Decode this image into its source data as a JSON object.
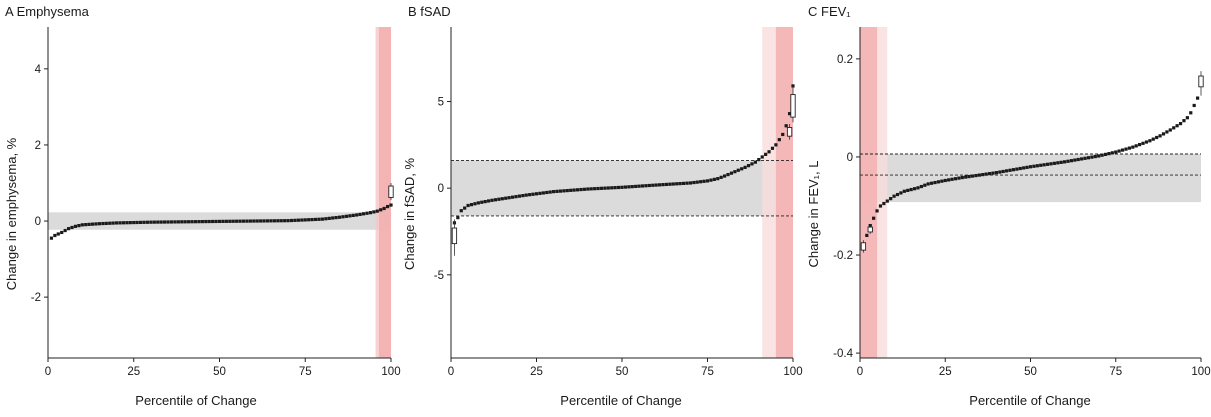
{
  "chart_data": [
    {
      "type": "scatter",
      "title": "A Emphysema",
      "xlabel": "Percentile of Change",
      "ylabel": "Change in emphysema, %",
      "xlim": [
        0,
        100
      ],
      "ylim": [
        -3.6,
        5.1
      ],
      "xticks": [
        0,
        25,
        50,
        75,
        100
      ],
      "yticks": [
        4,
        2,
        0,
        -2
      ],
      "ytick_labels": [
        "4",
        "2",
        "0",
        "-2"
      ],
      "reference_band": [
        -0.23,
        0.23
      ],
      "highlight_bands": [
        {
          "range": [
            95.5,
            100
          ],
          "color": "#f7c6c6"
        },
        {
          "range": [
            96.5,
            100
          ],
          "color": "#f4adad"
        }
      ],
      "curve": {
        "x": [
          1,
          2,
          4,
          6,
          8,
          10,
          15,
          20,
          30,
          40,
          50,
          60,
          70,
          75,
          80,
          85,
          90,
          94,
          96,
          98,
          99,
          100
        ],
        "y": [
          -0.45,
          -0.38,
          -0.3,
          -0.2,
          -0.14,
          -0.1,
          -0.07,
          -0.05,
          -0.03,
          -0.02,
          -0.01,
          0.0,
          0.01,
          0.03,
          0.05,
          0.1,
          0.16,
          0.22,
          0.26,
          0.33,
          0.38,
          0.42
        ]
      },
      "boxes": [
        {
          "x": 100,
          "q1": 0.62,
          "q3": 0.92,
          "whisker": [
            0.55,
            1.0
          ]
        }
      ],
      "colors": {
        "points": "#1a1a1a",
        "band": "#d9d9d9"
      }
    },
    {
      "type": "scatter",
      "title": "B fSAD",
      "xlabel": "Percentile of Change",
      "ylabel": "Change in fSAD, %",
      "xlim": [
        0,
        100
      ],
      "ylim": [
        -9.8,
        9.3
      ],
      "xticks": [
        0,
        25,
        50,
        75,
        100
      ],
      "yticks": [
        5,
        0,
        -5
      ],
      "ytick_labels": [
        "5",
        "0",
        "-5"
      ],
      "reference_band": [
        -1.6,
        1.6
      ],
      "dashed_lines": [
        -1.6,
        1.6
      ],
      "highlight_bands": [
        {
          "range": [
            91,
            100
          ],
          "color": "#f7dcdc"
        },
        {
          "range": [
            95,
            100
          ],
          "color": "#f4adad"
        }
      ],
      "curve": {
        "x": [
          1,
          2,
          3,
          5,
          8,
          12,
          17,
          22,
          30,
          40,
          50,
          60,
          70,
          75,
          78,
          80,
          83,
          86,
          89,
          91,
          93,
          95,
          96,
          97,
          98,
          99,
          100
        ],
        "y": [
          -2.0,
          -1.7,
          -1.3,
          -1.0,
          -0.85,
          -0.7,
          -0.55,
          -0.4,
          -0.2,
          -0.05,
          0.05,
          0.18,
          0.3,
          0.42,
          0.55,
          0.7,
          0.95,
          1.2,
          1.5,
          1.8,
          2.1,
          2.5,
          2.8,
          3.1,
          3.6,
          4.3,
          5.9
        ]
      },
      "boxes": [
        {
          "x": 1,
          "q1": -3.2,
          "q3": -2.3,
          "whisker": [
            -3.9,
            -1.8
          ]
        },
        {
          "x": 99,
          "q1": 3.0,
          "q3": 3.5,
          "whisker": [
            2.8,
            3.7
          ]
        },
        {
          "x": 100,
          "q1": 4.1,
          "q3": 5.4,
          "whisker": [
            3.8,
            5.9
          ]
        }
      ],
      "colors": {
        "points": "#1a1a1a",
        "band": "#d9d9d9"
      }
    },
    {
      "type": "scatter",
      "title": "C FEV₁",
      "xlabel": "Percentile of Change",
      "ylabel": "Change in FEV₁, L",
      "xlim": [
        0,
        100
      ],
      "ylim": [
        -0.41,
        0.265
      ],
      "xticks": [
        0,
        25,
        50,
        75,
        100
      ],
      "yticks": [
        0.2,
        0,
        -0.2,
        -0.4
      ],
      "ytick_labels": [
        "0.2",
        "0",
        "-0.2",
        "-0.4"
      ],
      "reference_band": [
        -0.092,
        0.006
      ],
      "dashed_lines": [
        0.006,
        -0.037
      ],
      "highlight_bands": [
        {
          "range": [
            0,
            8
          ],
          "color": "#f7dcdc"
        },
        {
          "range": [
            0,
            5
          ],
          "color": "#f4adad"
        }
      ],
      "curve": {
        "x": [
          1,
          2,
          3,
          4,
          5,
          6,
          8,
          10,
          13,
          17,
          20,
          25,
          30,
          40,
          50,
          60,
          70,
          75,
          80,
          85,
          88,
          91,
          94,
          96,
          97,
          98,
          99,
          100
        ],
        "y": [
          -0.18,
          -0.16,
          -0.14,
          -0.125,
          -0.11,
          -0.1,
          -0.09,
          -0.08,
          -0.07,
          -0.063,
          -0.055,
          -0.048,
          -0.042,
          -0.032,
          -0.02,
          -0.01,
          0.002,
          0.01,
          0.02,
          0.033,
          0.043,
          0.055,
          0.068,
          0.08,
          0.09,
          0.105,
          0.12,
          0.155
        ]
      },
      "boxes": [
        {
          "x": 1,
          "q1": -0.19,
          "q3": -0.175,
          "whisker": [
            -0.195,
            -0.17
          ]
        },
        {
          "x": 3,
          "q1": -0.153,
          "q3": -0.143,
          "whisker": [
            -0.157,
            -0.14
          ]
        },
        {
          "x": 100,
          "q1": 0.143,
          "q3": 0.165,
          "whisker": [
            0.125,
            0.175
          ]
        }
      ],
      "colors": {
        "points": "#1a1a1a",
        "band": "#d9d9d9"
      }
    }
  ]
}
